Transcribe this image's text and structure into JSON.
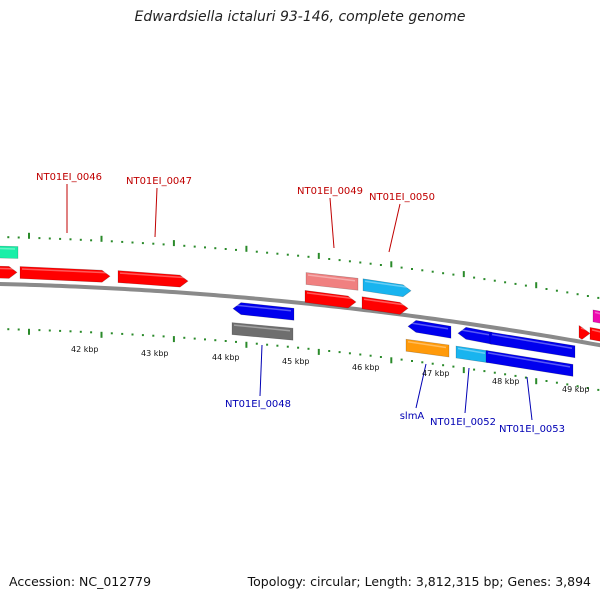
{
  "title": "Edwardsiella ictaluri 93-146, complete genome",
  "footer": {
    "accession": "Accession: NC_012779",
    "summary": "Topology: circular; Length: 3,812,315 bp; Genes: 3,894"
  },
  "colors": {
    "backbone": "#8a8a8a",
    "tick": "#2a8a2a",
    "forward_label": "#c00000",
    "reverse_label": "#0000b4",
    "red_gene": "#ff0000",
    "pink_gene": "#f08080",
    "cyan_gene": "#19b4ef",
    "blue_gene": "#0000ee",
    "gray_gene": "#6e6e6e",
    "orange_gene": "#ff9a0a",
    "teal_gene": "#1aefa8",
    "magenta_gene": "#ee0ab0"
  },
  "scale_labels": [
    "42 kbp",
    "43 kbp",
    "44 kbp",
    "45 kbp",
    "46 kbp",
    "47 kbp",
    "48 kbp",
    "49 kbp"
  ],
  "gene_labels": [
    {
      "text": "NT01EI_0046",
      "strand": "forward"
    },
    {
      "text": "NT01EI_0047",
      "strand": "forward"
    },
    {
      "text": "NT01EI_0049",
      "strand": "forward"
    },
    {
      "text": "NT01EI_0050",
      "strand": "forward"
    },
    {
      "text": "NT01EI_0048",
      "strand": "reverse"
    },
    {
      "text": "slmA",
      "strand": "reverse"
    },
    {
      "text": "NT01EI_0052",
      "strand": "reverse"
    },
    {
      "text": "NT01EI_0053",
      "strand": "reverse"
    }
  ]
}
